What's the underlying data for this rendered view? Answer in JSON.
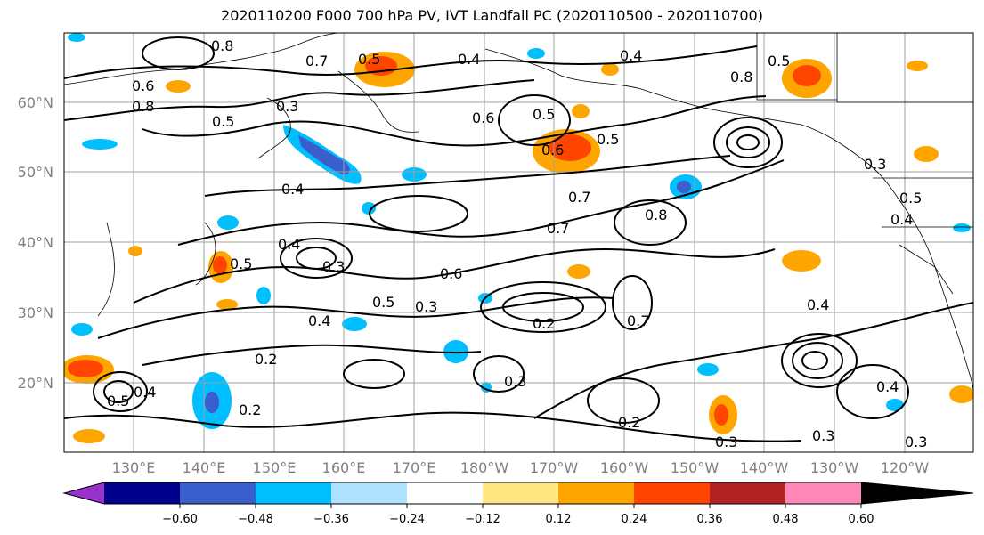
{
  "title": "2020110200 F000 700 hPa PV, IVT Landfall PC (2020110500 - 2020110700)",
  "map": {
    "lat_labels": [
      "60°N",
      "50°N",
      "40°N",
      "30°N",
      "20°N"
    ],
    "lon_labels": [
      "130°E",
      "140°E",
      "150°E",
      "160°E",
      "170°E",
      "180°W",
      "170°W",
      "160°W",
      "150°W",
      "140°W",
      "130°W",
      "120°W"
    ],
    "contour_labels": [
      "0.8",
      "0.5",
      "0.4",
      "0.4",
      "0.5",
      "0.8",
      "0.6",
      "0.7",
      "0.5",
      "0.6",
      "0.8",
      "0.5",
      "0.3",
      "0.5",
      "0.4",
      "0.6",
      "0.7",
      "0.8",
      "0.7",
      "0.4",
      "0.4",
      "0.3",
      "0.5",
      "0.5",
      "0.3",
      "0.6",
      "0.2",
      "0.7",
      "0.4",
      "0.2",
      "0.2",
      "0.3",
      "0.2",
      "0.5",
      "0.4",
      "0.3",
      "0.3",
      "0.4",
      "0.3",
      "0.3",
      "0.5",
      "0.4"
    ]
  },
  "colorbar": {
    "ticks": [
      "−0.60",
      "−0.48",
      "−0.36",
      "−0.24",
      "−0.12",
      "0.12",
      "0.24",
      "0.36",
      "0.48",
      "0.60"
    ],
    "colors": [
      "#9932cc",
      "#00008b",
      "#3a5fcd",
      "#00bfff",
      "#b0e2ff",
      "#ffffff",
      "#ffe680",
      "#ffa500",
      "#ff4500",
      "#b22222",
      "#ff88b8"
    ]
  }
}
